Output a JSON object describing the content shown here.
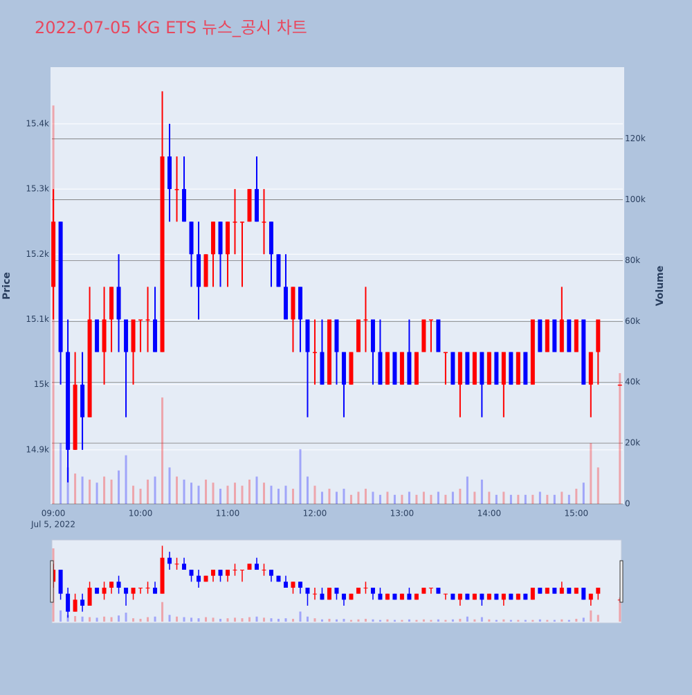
{
  "chart_data": {
    "type": "candlestick",
    "title": "2022-07-05 KG ETS 뉴스_공시 차트",
    "y_title": "Price",
    "y2_title": "Volume",
    "x_date_label": "Jul 5, 2022",
    "increasing_color": "#ff0000",
    "decreasing_color": "#0000ff",
    "grid": true,
    "x": [
      "2022-07-05 09:00",
      "2022-07-05 09:05",
      "2022-07-05 09:10",
      "2022-07-05 09:15",
      "2022-07-05 09:20",
      "2022-07-05 09:25",
      "2022-07-05 09:30",
      "2022-07-05 09:35",
      "2022-07-05 09:40",
      "2022-07-05 09:45",
      "2022-07-05 09:50",
      "2022-07-05 09:55",
      "2022-07-05 10:00",
      "2022-07-05 10:05",
      "2022-07-05 10:10",
      "2022-07-05 10:15",
      "2022-07-05 10:20",
      "2022-07-05 10:25",
      "2022-07-05 10:30",
      "2022-07-05 10:35",
      "2022-07-05 10:40",
      "2022-07-05 10:45",
      "2022-07-05 10:50",
      "2022-07-05 10:55",
      "2022-07-05 11:00",
      "2022-07-05 11:05",
      "2022-07-05 11:10",
      "2022-07-05 11:15",
      "2022-07-05 11:20",
      "2022-07-05 11:25",
      "2022-07-05 11:30",
      "2022-07-05 11:35",
      "2022-07-05 11:40",
      "2022-07-05 11:45",
      "2022-07-05 11:50",
      "2022-07-05 11:55",
      "2022-07-05 12:00",
      "2022-07-05 12:05",
      "2022-07-05 12:10",
      "2022-07-05 12:15",
      "2022-07-05 12:20",
      "2022-07-05 12:25",
      "2022-07-05 12:30",
      "2022-07-05 12:35",
      "2022-07-05 12:40",
      "2022-07-05 12:45",
      "2022-07-05 12:50",
      "2022-07-05 12:55",
      "2022-07-05 13:00",
      "2022-07-05 13:05",
      "2022-07-05 13:10",
      "2022-07-05 13:15",
      "2022-07-05 13:20",
      "2022-07-05 13:25",
      "2022-07-05 13:30",
      "2022-07-05 13:35",
      "2022-07-05 13:40",
      "2022-07-05 13:45",
      "2022-07-05 13:50",
      "2022-07-05 13:55",
      "2022-07-05 14:00",
      "2022-07-05 14:05",
      "2022-07-05 14:10",
      "2022-07-05 14:15",
      "2022-07-05 14:20",
      "2022-07-05 14:25",
      "2022-07-05 14:30",
      "2022-07-05 14:35",
      "2022-07-05 14:40",
      "2022-07-05 14:45",
      "2022-07-05 14:50",
      "2022-07-05 14:55",
      "2022-07-05 15:00",
      "2022-07-05 15:05",
      "2022-07-05 15:10",
      "2022-07-05 15:15",
      "2022-07-05 15:30"
    ],
    "open": [
      15150,
      15250,
      15050,
      14900,
      15000,
      14950,
      15100,
      15050,
      15100,
      15150,
      15100,
      15050,
      15100,
      15100,
      15100,
      15050,
      15350,
      15300,
      15300,
      15250,
      15200,
      15150,
      15200,
      15250,
      15200,
      15250,
      15250,
      15250,
      15300,
      15250,
      15250,
      15200,
      15150,
      15100,
      15150,
      15100,
      15050,
      15050,
      15000,
      15100,
      15050,
      15000,
      15050,
      15100,
      15100,
      15050,
      15000,
      15050,
      15000,
      15050,
      15000,
      15050,
      15100,
      15100,
      15050,
      15050,
      15000,
      15050,
      15000,
      15050,
      15000,
      15050,
      15000,
      15050,
      15000,
      15050,
      15000,
      15100,
      15050,
      15100,
      15050,
      15100,
      15050,
      15100,
      15000,
      15050,
      15000
    ],
    "high": [
      15300,
      15250,
      15100,
      15050,
      15050,
      15150,
      15100,
      15150,
      15150,
      15200,
      15100,
      15100,
      15100,
      15150,
      15150,
      15450,
      15400,
      15350,
      15350,
      15250,
      15250,
      15200,
      15250,
      15250,
      15250,
      15300,
      15250,
      15300,
      15350,
      15300,
      15250,
      15200,
      15200,
      15150,
      15150,
      15100,
      15100,
      15100,
      15100,
      15100,
      15050,
      15050,
      15100,
      15150,
      15100,
      15100,
      15050,
      15050,
      15050,
      15100,
      15050,
      15100,
      15100,
      15100,
      15050,
      15050,
      15050,
      15050,
      15050,
      15050,
      15050,
      15050,
      15050,
      15050,
      15050,
      15050,
      15100,
      15100,
      15100,
      15100,
      15150,
      15100,
      15100,
      15100,
      15050,
      15100,
      15000
    ],
    "low": [
      15100,
      15000,
      14850,
      14900,
      14900,
      14950,
      15050,
      15000,
      15050,
      15050,
      14950,
      15000,
      15050,
      15050,
      15050,
      15050,
      15250,
      15250,
      15250,
      15150,
      15100,
      15150,
      15150,
      15150,
      15150,
      15200,
      15150,
      15250,
      15250,
      15200,
      15150,
      15150,
      15100,
      15050,
      15050,
      14950,
      15000,
      15000,
      15000,
      15000,
      14950,
      15000,
      15050,
      15050,
      15000,
      15000,
      15000,
      15000,
      15000,
      15000,
      15000,
      15050,
      15050,
      15050,
      15000,
      15000,
      14950,
      15000,
      15000,
      14950,
      15000,
      15000,
      14950,
      15000,
      15000,
      15000,
      15000,
      15050,
      15050,
      15050,
      15050,
      15050,
      15050,
      15000,
      14950,
      15000,
      15000
    ],
    "close": [
      15250,
      15050,
      14900,
      15000,
      14950,
      15100,
      15050,
      15100,
      15150,
      15100,
      15050,
      15100,
      15100,
      15100,
      15050,
      15350,
      15300,
      15300,
      15250,
      15200,
      15150,
      15200,
      15250,
      15200,
      15250,
      15250,
      15250,
      15300,
      15250,
      15250,
      15200,
      15150,
      15100,
      15150,
      15100,
      15050,
      15050,
      15000,
      15100,
      15050,
      15000,
      15050,
      15100,
      15100,
      15050,
      15000,
      15050,
      15000,
      15050,
      15000,
      15050,
      15100,
      15100,
      15050,
      15050,
      15000,
      15050,
      15000,
      15050,
      15000,
      15050,
      15000,
      15050,
      15000,
      15050,
      15000,
      15100,
      15050,
      15100,
      15050,
      15100,
      15050,
      15100,
      15000,
      15050,
      15100,
      15000
    ],
    "volume": [
      131000,
      20000,
      12000,
      10000,
      9000,
      8000,
      7000,
      9000,
      8000,
      11000,
      16000,
      6000,
      5000,
      8000,
      9000,
      35000,
      12000,
      9000,
      8000,
      7000,
      6000,
      8000,
      7000,
      5000,
      6000,
      7000,
      6000,
      8000,
      9000,
      7000,
      6000,
      5000,
      6000,
      5000,
      18000,
      9000,
      6000,
      4000,
      5000,
      4000,
      5000,
      3000,
      4000,
      5000,
      4000,
      3000,
      4000,
      3000,
      3000,
      4000,
      3000,
      4000,
      3000,
      4000,
      3000,
      4000,
      5000,
      9000,
      4000,
      8000,
      4000,
      3000,
      4000,
      3000,
      3000,
      3000,
      3000,
      4000,
      3000,
      3000,
      4000,
      3000,
      5000,
      7000,
      20000,
      12000,
      43000
    ],
    "xlim": [
      "2022-07-05 08:59",
      "2022-07-05 15:32"
    ],
    "xticks": [
      {
        "value": "2022-07-05 09:00",
        "label": "09:00"
      },
      {
        "value": "2022-07-05 10:00",
        "label": "10:00"
      },
      {
        "value": "2022-07-05 11:00",
        "label": "11:00"
      },
      {
        "value": "2022-07-05 12:00",
        "label": "12:00"
      },
      {
        "value": "2022-07-05 13:00",
        "label": "13:00"
      },
      {
        "value": "2022-07-05 14:00",
        "label": "14:00"
      },
      {
        "value": "2022-07-05 15:00",
        "label": "15:00"
      }
    ],
    "ylim": [
      14817,
      15487
    ],
    "yticks": [
      {
        "value": 14900,
        "label": "14.9k"
      },
      {
        "value": 15000,
        "label": "15k"
      },
      {
        "value": 15100,
        "label": "15.1k"
      },
      {
        "value": 15200,
        "label": "15.2k"
      },
      {
        "value": 15300,
        "label": "15.3k"
      },
      {
        "value": 15400,
        "label": "15.4k"
      }
    ],
    "y2lim": [
      0,
      143600
    ],
    "y2ticks": [
      0,
      {
        "value": 20000,
        "label": "20k"
      },
      {
        "value": 40000,
        "label": "40k"
      },
      {
        "value": 60000,
        "label": "60k"
      },
      {
        "value": 80000,
        "label": "80k"
      },
      {
        "value": 100000,
        "label": "100k"
      },
      {
        "value": 120000,
        "label": "120k"
      }
    ]
  }
}
